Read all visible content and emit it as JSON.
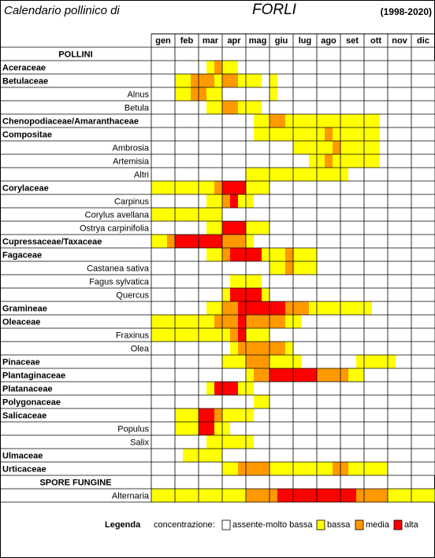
{
  "header": {
    "title": "Calendario pollinico di",
    "city": "FORLI",
    "period": "(1998-2020)"
  },
  "months": [
    "gen",
    "feb",
    "mar",
    "apr",
    "mag",
    "giu",
    "lug",
    "ago",
    "set",
    "ott",
    "nov",
    "dic"
  ],
  "rows": [
    {
      "name": "POLLINI",
      "kind": "section"
    },
    {
      "name": "Aceraceae",
      "kind": "family",
      "cells": [
        0,
        0,
        0,
        0,
        0,
        0,
        0,
        1,
        2,
        1,
        1,
        0,
        0,
        0,
        0,
        0,
        0,
        0,
        0,
        0,
        0,
        0,
        0,
        0,
        0,
        0,
        0,
        0,
        0,
        0,
        0,
        0,
        0,
        0,
        0,
        0
      ]
    },
    {
      "name": "Betulaceae",
      "kind": "family",
      "cells": [
        0,
        0,
        0,
        1,
        1,
        2,
        2,
        2,
        1,
        2,
        2,
        1,
        1,
        1,
        0,
        1,
        0,
        0,
        0,
        0,
        0,
        0,
        0,
        0,
        0,
        0,
        0,
        0,
        0,
        0,
        0,
        0,
        0,
        0,
        0,
        0
      ]
    },
    {
      "name": "Alnus",
      "kind": "species",
      "cells": [
        0,
        0,
        0,
        1,
        1,
        2,
        2,
        1,
        1,
        0,
        0,
        0,
        0,
        0,
        0,
        1,
        0,
        0,
        0,
        0,
        0,
        0,
        0,
        0,
        0,
        0,
        0,
        0,
        0,
        0,
        0,
        0,
        0,
        0,
        0,
        0
      ]
    },
    {
      "name": "Betula",
      "kind": "species",
      "cells": [
        0,
        0,
        0,
        0,
        0,
        0,
        0,
        1,
        1,
        2,
        2,
        1,
        1,
        1,
        0,
        0,
        0,
        0,
        0,
        0,
        0,
        0,
        0,
        0,
        0,
        0,
        0,
        0,
        0,
        0,
        0,
        0,
        0,
        0,
        0,
        0
      ]
    },
    {
      "name": "Chenopodiaceae/Amaranthaceae",
      "kind": "family",
      "cells": [
        0,
        0,
        0,
        0,
        0,
        0,
        0,
        0,
        0,
        0,
        0,
        0,
        0,
        1,
        1,
        2,
        2,
        1,
        1,
        1,
        1,
        1,
        1,
        1,
        1,
        1,
        1,
        1,
        1,
        0,
        0,
        0,
        0,
        0,
        0,
        0
      ]
    },
    {
      "name": "Compositae",
      "kind": "family",
      "cells": [
        0,
        0,
        0,
        0,
        0,
        0,
        0,
        0,
        0,
        0,
        0,
        0,
        0,
        1,
        1,
        1,
        1,
        1,
        1,
        1,
        1,
        1,
        2,
        1,
        1,
        1,
        1,
        1,
        1,
        0,
        0,
        0,
        0,
        0,
        0,
        0
      ]
    },
    {
      "name": "Ambrosia",
      "kind": "species",
      "cells": [
        0,
        0,
        0,
        0,
        0,
        0,
        0,
        0,
        0,
        0,
        0,
        0,
        0,
        0,
        0,
        0,
        0,
        0,
        1,
        1,
        1,
        1,
        1,
        2,
        1,
        1,
        1,
        1,
        1,
        0,
        0,
        0,
        0,
        0,
        0,
        0
      ]
    },
    {
      "name": "Artemisia",
      "kind": "species",
      "cells": [
        0,
        0,
        0,
        0,
        0,
        0,
        0,
        0,
        0,
        0,
        0,
        0,
        0,
        0,
        0,
        0,
        0,
        0,
        0,
        0,
        1,
        1,
        2,
        1,
        1,
        1,
        1,
        1,
        1,
        0,
        0,
        0,
        0,
        0,
        0,
        0
      ]
    },
    {
      "name": "Altri",
      "kind": "species",
      "cells": [
        0,
        0,
        0,
        0,
        0,
        0,
        0,
        0,
        0,
        0,
        0,
        0,
        1,
        1,
        1,
        1,
        1,
        1,
        1,
        1,
        1,
        1,
        1,
        1,
        1,
        0,
        0,
        0,
        0,
        0,
        0,
        0,
        0,
        0,
        0,
        0
      ]
    },
    {
      "name": "Corylaceae",
      "kind": "family",
      "cells": [
        1,
        1,
        1,
        1,
        1,
        1,
        1,
        1,
        2,
        3,
        3,
        3,
        1,
        1,
        1,
        0,
        0,
        0,
        0,
        0,
        0,
        0,
        0,
        0,
        0,
        0,
        0,
        0,
        0,
        0,
        0,
        0,
        0,
        0,
        0,
        0
      ]
    },
    {
      "name": "Carpinus",
      "kind": "species",
      "cells": [
        0,
        0,
        0,
        0,
        0,
        0,
        0,
        1,
        1,
        2,
        3,
        1,
        1,
        0,
        0,
        0,
        0,
        0,
        0,
        0,
        0,
        0,
        0,
        0,
        0,
        0,
        0,
        0,
        0,
        0,
        0,
        0,
        0,
        0,
        0,
        0
      ]
    },
    {
      "name": "Corylus avellana",
      "kind": "species",
      "cells": [
        1,
        1,
        1,
        1,
        1,
        1,
        1,
        1,
        1,
        0,
        0,
        0,
        0,
        0,
        0,
        0,
        0,
        0,
        0,
        0,
        0,
        0,
        0,
        0,
        0,
        0,
        0,
        0,
        0,
        0,
        0,
        0,
        0,
        0,
        0,
        0
      ]
    },
    {
      "name": "Ostrya carpinifolia",
      "kind": "species",
      "cells": [
        0,
        0,
        0,
        0,
        0,
        0,
        0,
        1,
        1,
        3,
        3,
        3,
        1,
        1,
        1,
        0,
        0,
        0,
        0,
        0,
        0,
        0,
        0,
        0,
        0,
        0,
        0,
        0,
        0,
        0,
        0,
        0,
        0,
        0,
        0,
        0
      ]
    },
    {
      "name": "Cupressaceae/Taxaceae",
      "kind": "family",
      "cells": [
        1,
        1,
        2,
        3,
        3,
        3,
        3,
        3,
        3,
        2,
        2,
        2,
        1,
        0,
        0,
        0,
        0,
        0,
        0,
        0,
        0,
        0,
        0,
        0,
        0,
        0,
        0,
        0,
        0,
        0,
        0,
        0,
        0,
        0,
        0,
        0
      ]
    },
    {
      "name": "Fagaceae",
      "kind": "family",
      "cells": [
        0,
        0,
        0,
        0,
        0,
        0,
        0,
        1,
        1,
        2,
        3,
        3,
        3,
        3,
        1,
        1,
        1,
        2,
        1,
        1,
        1,
        0,
        0,
        0,
        0,
        0,
        0,
        0,
        0,
        0,
        0,
        0,
        0,
        0,
        0,
        0
      ]
    },
    {
      "name": "Castanea sativa",
      "kind": "species",
      "cells": [
        0,
        0,
        0,
        0,
        0,
        0,
        0,
        0,
        0,
        0,
        0,
        0,
        0,
        0,
        0,
        1,
        1,
        2,
        1,
        1,
        1,
        0,
        0,
        0,
        0,
        0,
        0,
        0,
        0,
        0,
        0,
        0,
        0,
        0,
        0,
        0
      ]
    },
    {
      "name": "Fagus sylvatica",
      "kind": "species",
      "cells": [
        0,
        0,
        0,
        0,
        0,
        0,
        0,
        0,
        0,
        0,
        1,
        1,
        1,
        1,
        0,
        0,
        0,
        0,
        0,
        0,
        0,
        0,
        0,
        0,
        0,
        0,
        0,
        0,
        0,
        0,
        0,
        0,
        0,
        0,
        0,
        0
      ]
    },
    {
      "name": "Quercus",
      "kind": "species",
      "cells": [
        0,
        0,
        0,
        0,
        0,
        0,
        0,
        0,
        0,
        1,
        3,
        3,
        3,
        3,
        1,
        0,
        0,
        0,
        0,
        0,
        0,
        0,
        0,
        0,
        0,
        0,
        0,
        0,
        0,
        0,
        0,
        0,
        0,
        0,
        0,
        0
      ]
    },
    {
      "name": "Gramineae",
      "kind": "family",
      "cells": [
        0,
        0,
        0,
        0,
        0,
        0,
        0,
        1,
        1,
        2,
        2,
        3,
        3,
        3,
        3,
        3,
        3,
        2,
        2,
        2,
        1,
        1,
        1,
        1,
        1,
        1,
        1,
        1,
        0,
        0,
        0,
        0,
        0,
        0,
        0,
        0
      ]
    },
    {
      "name": "Oleaceae",
      "kind": "family",
      "cells": [
        1,
        1,
        1,
        1,
        1,
        1,
        1,
        1,
        2,
        2,
        2,
        3,
        2,
        2,
        2,
        2,
        2,
        1,
        1,
        0,
        0,
        0,
        0,
        0,
        0,
        0,
        0,
        0,
        0,
        0,
        0,
        0,
        0,
        0,
        0,
        0
      ]
    },
    {
      "name": "Fraxinus",
      "kind": "species",
      "cells": [
        1,
        1,
        1,
        1,
        1,
        1,
        1,
        1,
        1,
        1,
        2,
        3,
        1,
        1,
        1,
        0,
        0,
        0,
        0,
        0,
        0,
        0,
        0,
        0,
        0,
        0,
        0,
        0,
        0,
        0,
        0,
        0,
        0,
        0,
        0,
        0
      ]
    },
    {
      "name": "Olea",
      "kind": "species",
      "cells": [
        0,
        0,
        0,
        0,
        0,
        0,
        0,
        0,
        0,
        0,
        1,
        2,
        2,
        2,
        2,
        2,
        2,
        1,
        0,
        0,
        0,
        0,
        0,
        0,
        0,
        0,
        0,
        0,
        0,
        0,
        0,
        0,
        0,
        0,
        0,
        0
      ]
    },
    {
      "name": "Pinaceae",
      "kind": "family",
      "cells": [
        0,
        0,
        0,
        0,
        0,
        0,
        0,
        0,
        0,
        1,
        1,
        1,
        2,
        2,
        2,
        1,
        1,
        1,
        1,
        0,
        0,
        0,
        0,
        0,
        0,
        0,
        1,
        1,
        1,
        1,
        1,
        0,
        0,
        0,
        0,
        0
      ]
    },
    {
      "name": "Plantaginaceae",
      "kind": "family",
      "cells": [
        0,
        0,
        0,
        0,
        0,
        0,
        0,
        0,
        0,
        0,
        0,
        0,
        1,
        2,
        2,
        3,
        3,
        3,
        3,
        3,
        3,
        2,
        2,
        2,
        2,
        1,
        1,
        0,
        0,
        0,
        0,
        0,
        0,
        0,
        0,
        0
      ]
    },
    {
      "name": "Platanaceae",
      "kind": "family",
      "cells": [
        0,
        0,
        0,
        0,
        0,
        0,
        0,
        1,
        3,
        3,
        3,
        1,
        1,
        0,
        0,
        0,
        0,
        0,
        0,
        0,
        0,
        0,
        0,
        0,
        0,
        0,
        0,
        0,
        0,
        0,
        0,
        0,
        0,
        0,
        0,
        0
      ]
    },
    {
      "name": "Polygonaceae",
      "kind": "family",
      "cells": [
        0,
        0,
        0,
        0,
        0,
        0,
        0,
        0,
        0,
        0,
        0,
        0,
        0,
        1,
        1,
        0,
        0,
        0,
        0,
        0,
        0,
        0,
        0,
        0,
        0,
        0,
        0,
        0,
        0,
        0,
        0,
        0,
        0,
        0,
        0,
        0
      ]
    },
    {
      "name": "Salicaceae",
      "kind": "family",
      "cells": [
        0,
        0,
        0,
        1,
        1,
        1,
        3,
        3,
        2,
        1,
        1,
        1,
        1,
        0,
        0,
        0,
        0,
        0,
        0,
        0,
        0,
        0,
        0,
        0,
        0,
        0,
        0,
        0,
        0,
        0,
        0,
        0,
        0,
        0,
        0,
        0
      ]
    },
    {
      "name": "Populus",
      "kind": "species",
      "cells": [
        0,
        0,
        0,
        1,
        1,
        1,
        3,
        3,
        1,
        1,
        0,
        0,
        0,
        0,
        0,
        0,
        0,
        0,
        0,
        0,
        0,
        0,
        0,
        0,
        0,
        0,
        0,
        0,
        0,
        0,
        0,
        0,
        0,
        0,
        0,
        0
      ]
    },
    {
      "name": "Salix",
      "kind": "species",
      "cells": [
        0,
        0,
        0,
        0,
        0,
        0,
        0,
        1,
        1,
        1,
        1,
        1,
        1,
        0,
        0,
        0,
        0,
        0,
        0,
        0,
        0,
        0,
        0,
        0,
        0,
        0,
        0,
        0,
        0,
        0,
        0,
        0,
        0,
        0,
        0,
        0
      ]
    },
    {
      "name": "Ulmaceae",
      "kind": "family",
      "cells": [
        0,
        0,
        0,
        0,
        1,
        1,
        1,
        1,
        1,
        0,
        0,
        0,
        0,
        0,
        0,
        0,
        0,
        0,
        0,
        0,
        0,
        0,
        0,
        0,
        0,
        0,
        0,
        0,
        0,
        0,
        0,
        0,
        0,
        0,
        0,
        0
      ]
    },
    {
      "name": "Urticaceae",
      "kind": "family",
      "cells": [
        0,
        0,
        0,
        0,
        0,
        0,
        0,
        0,
        0,
        1,
        1,
        2,
        2,
        2,
        2,
        1,
        1,
        1,
        1,
        1,
        1,
        1,
        1,
        2,
        2,
        1,
        1,
        1,
        1,
        1,
        0,
        0,
        0,
        0,
        0,
        0
      ]
    },
    {
      "name": "SPORE FUNGINE",
      "kind": "section"
    },
    {
      "name": "Alternaria",
      "kind": "species",
      "cells": [
        1,
        1,
        1,
        1,
        1,
        1,
        1,
        1,
        1,
        1,
        1,
        1,
        2,
        2,
        2,
        2,
        3,
        3,
        3,
        3,
        3,
        3,
        3,
        3,
        3,
        3,
        2,
        2,
        2,
        2,
        1,
        1,
        1,
        1,
        1,
        1
      ]
    }
  ],
  "legend": {
    "title": "Legenda",
    "label": "concentrazione:",
    "levels": [
      {
        "label": "assente-molto bassa",
        "color": "#ffffff"
      },
      {
        "label": "bassa",
        "color": "#ffff00"
      },
      {
        "label": "media",
        "color": "#ff9900"
      },
      {
        "label": "alta",
        "color": "#ff0000"
      }
    ]
  }
}
